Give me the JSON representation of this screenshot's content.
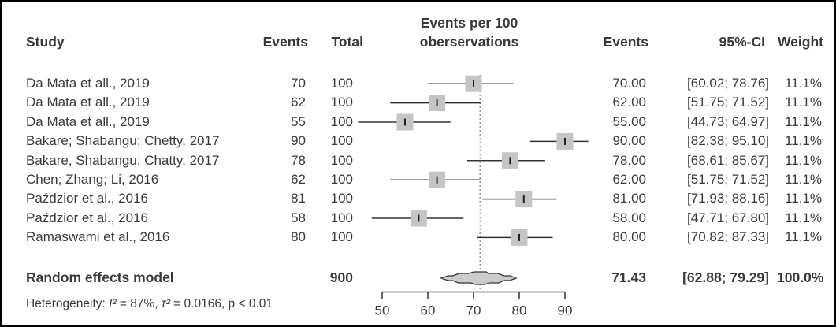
{
  "colors": {
    "text": "#3a3a3a",
    "ci_line": "#333333",
    "square_fill": "#c5c5c5",
    "diamond_fill": "#cccccc",
    "diamond_stroke": "#333333",
    "dotted_line": "#999999",
    "axis": "#333333",
    "frame_border": "#000000"
  },
  "header": {
    "study": "Study",
    "events_left": "Events",
    "total": "Total",
    "plot_title_line1": "Events per 100",
    "plot_title_line2": "oberservations",
    "events_right": "Events",
    "ci": "95%-CI",
    "weight": "Weight"
  },
  "heterogeneity": {
    "label": "Heterogeneity: ",
    "i2": "I²",
    "mid": " = 87%, ",
    "tau": "τ²",
    "tail": " = 0.0166, p < 0.01"
  },
  "chart_data": {
    "type": "forest",
    "title": "Events per 100 oberservations",
    "x_ticks": [
      50,
      60,
      70,
      80,
      90
    ],
    "xlim": [
      44,
      96
    ],
    "pooled_reference_x": 71.43,
    "grid": false,
    "studies": [
      {
        "study": "Da Mata et all., 2019",
        "events": "70",
        "total": "100",
        "estimate": 70.0,
        "ci_lower": 60.02,
        "ci_upper": 78.76,
        "events_fmt": "70.00",
        "ci_fmt": "[60.02; 78.76]",
        "weight": "11.1%"
      },
      {
        "study": "Da Mata et all., 2019",
        "events": "62",
        "total": "100",
        "estimate": 62.0,
        "ci_lower": 51.75,
        "ci_upper": 71.52,
        "events_fmt": "62.00",
        "ci_fmt": "[51.75; 71.52]",
        "weight": "11.1%"
      },
      {
        "study": "Da Mata et all., 2019",
        "events": "55",
        "total": "100",
        "estimate": 55.0,
        "ci_lower": 44.73,
        "ci_upper": 64.97,
        "events_fmt": "55.00",
        "ci_fmt": "[44.73; 64.97]",
        "weight": "11.1%"
      },
      {
        "study": "Bakare; Shabangu; Chetty, 2017",
        "events": "90",
        "total": "100",
        "estimate": 90.0,
        "ci_lower": 82.38,
        "ci_upper": 95.1,
        "events_fmt": "90.00",
        "ci_fmt": "[82.38; 95.10]",
        "weight": "11.1%"
      },
      {
        "study": "Bakare, Shabangu; Chatty, 2017",
        "events": "78",
        "total": "100",
        "estimate": 78.0,
        "ci_lower": 68.61,
        "ci_upper": 85.67,
        "events_fmt": "78.00",
        "ci_fmt": "[68.61; 85.67]",
        "weight": "11.1%"
      },
      {
        "study": "Chen; Zhang; Li, 2016",
        "events": "62",
        "total": "100",
        "estimate": 62.0,
        "ci_lower": 51.75,
        "ci_upper": 71.52,
        "events_fmt": "62.00",
        "ci_fmt": "[51.75; 71.52]",
        "weight": "11.1%"
      },
      {
        "study": "Paździor et al., 2016",
        "events": "81",
        "total": "100",
        "estimate": 81.0,
        "ci_lower": 71.93,
        "ci_upper": 88.16,
        "events_fmt": "81.00",
        "ci_fmt": "[71.93; 88.16]",
        "weight": "11.1%"
      },
      {
        "study": "Paździor et al., 2016",
        "events": "58",
        "total": "100",
        "estimate": 58.0,
        "ci_lower": 47.71,
        "ci_upper": 67.8,
        "events_fmt": "58.00",
        "ci_fmt": "[47.71; 67.80]",
        "weight": "11.1%"
      },
      {
        "study": "Ramaswami et al., 2016",
        "events": "80",
        "total": "100",
        "estimate": 80.0,
        "ci_lower": 70.82,
        "ci_upper": 87.33,
        "events_fmt": "80.00",
        "ci_fmt": "[70.82; 87.33]",
        "weight": "11.1%"
      }
    ],
    "summary": {
      "label": "Random effects model",
      "total": "900",
      "estimate": 71.43,
      "ci_lower": 62.88,
      "ci_upper": 79.29,
      "estimate_fmt": "71.43",
      "ci_fmt": "[62.88; 79.29]",
      "weight": "100.0%"
    }
  }
}
